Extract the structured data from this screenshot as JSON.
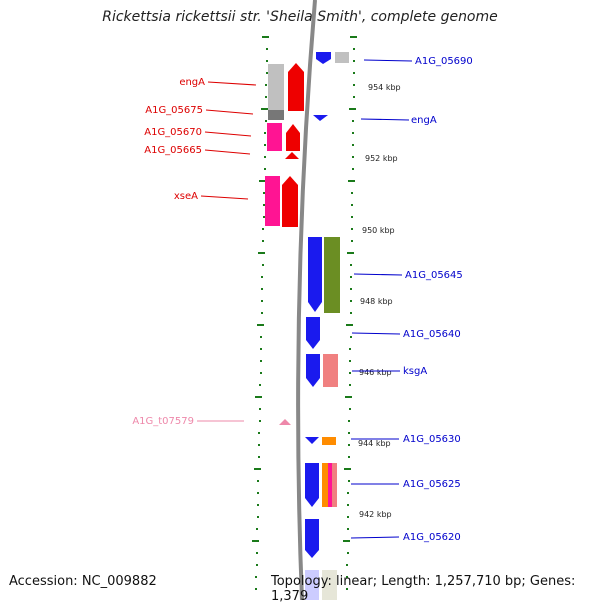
{
  "title": "Rickettsia rickettsii str. 'Sheila Smith', complete genome",
  "accession_text": "Accession: NC_009882",
  "topology_text": "Topology: linear; Length: 1,257,710 bp; Genes: 1,379",
  "kbp_ticks": [
    "954 kbp",
    "952 kbp",
    "950 kbp",
    "948 kbp",
    "946 kbp",
    "944 kbp",
    "942 kbp"
  ],
  "left_labels": [
    "engA",
    "A1G_05675",
    "A1G_05670",
    "A1G_05665",
    "xseA",
    "A1G_t07579"
  ],
  "right_labels": [
    "A1G_05690",
    "engA",
    "A1G_05645",
    "A1G_05640",
    "ksgA",
    "A1G_05630",
    "A1G_05625",
    "A1G_05620"
  ],
  "colors": {
    "left_label": "#dd0000",
    "right_label": "#0000cc",
    "trna_label": "#ee88aa",
    "gene_red": "#ee0000",
    "gene_blue": "#1a1aee",
    "gene_magenta": "#ff1493",
    "gene_grey": "#c0c0c0",
    "gene_olive": "#6b8e23",
    "gene_salmon": "#f08080",
    "gene_orange": "#ff8c00",
    "tick_green": "#1a7a1a",
    "backbone": "#888888"
  }
}
